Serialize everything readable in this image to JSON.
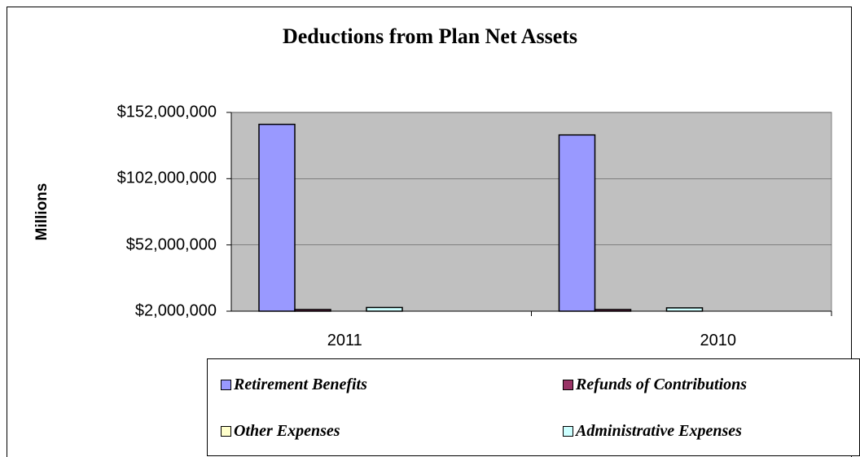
{
  "chart_data": {
    "type": "bar",
    "title": "Deductions from Plan Net Assets",
    "xlabel": "",
    "ylabel": "Millions",
    "categories": [
      "2011",
      "2010"
    ],
    "ylim": [
      2000000,
      152000000
    ],
    "yticks": [
      2000000,
      52000000,
      102000000,
      152000000
    ],
    "ytick_labels": [
      "$2,000,000",
      "$52,000,000",
      "$102,000,000",
      "$152,000,000"
    ],
    "grid": true,
    "legend_position": "bottom-right",
    "series": [
      {
        "name": "Retirement Benefits",
        "color": "#9999ff",
        "values": [
          143000000,
          135000000
        ]
      },
      {
        "name": "Refunds of Contributions",
        "color": "#993366",
        "values": [
          3200000,
          3000000
        ]
      },
      {
        "name": "Other Expenses",
        "color": "#ffffcc",
        "values": [
          0,
          0
        ]
      },
      {
        "name": "Administrative Expenses",
        "color": "#ccffff",
        "values": [
          4800000,
          4500000
        ]
      }
    ],
    "plot_background": "#c0c0c0"
  }
}
